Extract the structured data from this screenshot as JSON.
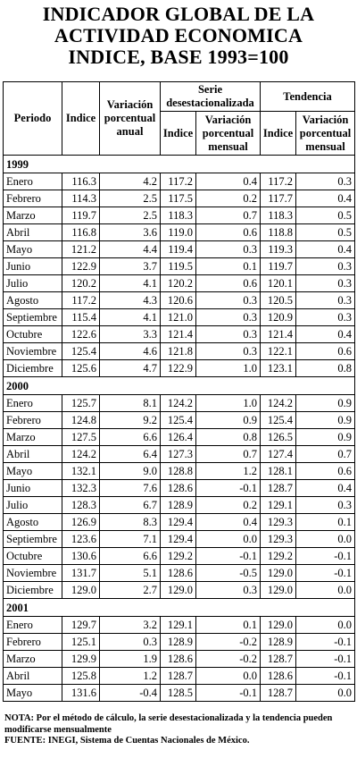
{
  "title": {
    "line1": "INDICADOR GLOBAL DE LA",
    "line2": "ACTIVIDAD ECONOMICA",
    "line3": "INDICE, BASE 1993=100"
  },
  "headers": {
    "periodo": "Periodo",
    "indice": "Indice",
    "variacion_anual": "Variación porcentual anual",
    "serie": "Serie desestacionalizada",
    "tendencia": "Tendencia",
    "sub_indice": "Indice",
    "sub_variacion": "Variación porcentual mensual"
  },
  "years": [
    {
      "year": "1999",
      "rows": [
        [
          "Enero",
          "116.3",
          "4.2",
          "117.2",
          "0.4",
          "117.2",
          "0.3"
        ],
        [
          "Febrero",
          "114.3",
          "2.5",
          "117.5",
          "0.2",
          "117.7",
          "0.4"
        ],
        [
          "Marzo",
          "119.7",
          "2.5",
          "118.3",
          "0.7",
          "118.3",
          "0.5"
        ],
        [
          "Abril",
          "116.8",
          "3.6",
          "119.0",
          "0.6",
          "118.8",
          "0.5"
        ],
        [
          "Mayo",
          "121.2",
          "4.4",
          "119.4",
          "0.3",
          "119.3",
          "0.4"
        ],
        [
          "Junio",
          "122.9",
          "3.7",
          "119.5",
          "0.1",
          "119.7",
          "0.3"
        ],
        [
          "Julio",
          "120.2",
          "4.1",
          "120.2",
          "0.6",
          "120.1",
          "0.3"
        ],
        [
          "Agosto",
          "117.2",
          "4.3",
          "120.6",
          "0.3",
          "120.5",
          "0.3"
        ],
        [
          "Septiembre",
          "115.4",
          "4.1",
          "121.0",
          "0.3",
          "120.9",
          "0.3"
        ],
        [
          "Octubre",
          "122.6",
          "3.3",
          "121.4",
          "0.3",
          "121.4",
          "0.4"
        ],
        [
          "Noviembre",
          "125.4",
          "4.6",
          "121.8",
          "0.3",
          "122.1",
          "0.6"
        ],
        [
          "Diciembre",
          "125.6",
          "4.7",
          "122.9",
          "1.0",
          "123.1",
          "0.8"
        ]
      ]
    },
    {
      "year": "2000",
      "rows": [
        [
          "Enero",
          "125.7",
          "8.1",
          "124.2",
          "1.0",
          "124.2",
          "0.9"
        ],
        [
          "Febrero",
          "124.8",
          "9.2",
          "125.4",
          "0.9",
          "125.4",
          "0.9"
        ],
        [
          "Marzo",
          "127.5",
          "6.6",
          "126.4",
          "0.8",
          "126.5",
          "0.9"
        ],
        [
          "Abril",
          "124.2",
          "6.4",
          "127.3",
          "0.7",
          "127.4",
          "0.7"
        ],
        [
          "Mayo",
          "132.1",
          "9.0",
          "128.8",
          "1.2",
          "128.1",
          "0.6"
        ],
        [
          "Junio",
          "132.3",
          "7.6",
          "128.6",
          "-0.1",
          "128.7",
          "0.4"
        ],
        [
          "Julio",
          "128.3",
          "6.7",
          "128.9",
          "0.2",
          "129.1",
          "0.3"
        ],
        [
          "Agosto",
          "126.9",
          "8.3",
          "129.4",
          "0.4",
          "129.3",
          "0.1"
        ],
        [
          "Septiembre",
          "123.6",
          "7.1",
          "129.4",
          "0.0",
          "129.3",
          "0.0"
        ],
        [
          "Octubre",
          "130.6",
          "6.6",
          "129.2",
          "-0.1",
          "129.2",
          "-0.1"
        ],
        [
          "Noviembre",
          "131.7",
          "5.1",
          "128.6",
          "-0.5",
          "129.0",
          "-0.1"
        ],
        [
          "Diciembre",
          "129.0",
          "2.7",
          "129.0",
          "0.3",
          "129.0",
          "0.0"
        ]
      ]
    },
    {
      "year": "2001",
      "rows": [
        [
          "Enero",
          "129.7",
          "3.2",
          "129.1",
          "0.1",
          "129.0",
          "0.0"
        ],
        [
          "Febrero",
          "125.1",
          "0.3",
          "128.9",
          "-0.2",
          "128.9",
          "-0.1"
        ],
        [
          "Marzo",
          "129.9",
          "1.9",
          "128.6",
          "-0.2",
          "128.7",
          "-0.1"
        ],
        [
          "Abril",
          "125.8",
          "1.2",
          "128.7",
          "0.0",
          "128.6",
          "-0.1"
        ],
        [
          "Mayo",
          "131.6",
          "-0.4",
          "128.5",
          "-0.1",
          "128.7",
          "0.0"
        ]
      ]
    }
  ],
  "notes": {
    "nota": "NOTA: Por el método de cálculo, la serie desestacionalizada y la tendencia pueden modificarse mensualmente",
    "fuente": "FUENTE: INEGI, Sistema de Cuentas Nacionales de México."
  }
}
